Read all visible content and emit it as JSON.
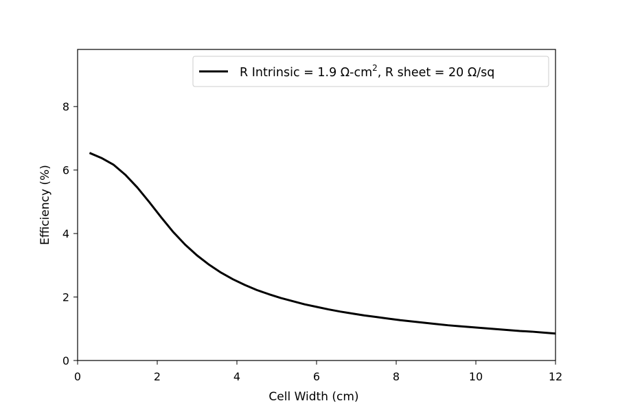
{
  "chart_data": {
    "type": "line",
    "xlabel": "Cell Width (cm)",
    "ylabel": "Efficiency (%)",
    "xlim": [
      0,
      12
    ],
    "ylim": [
      0,
      9.8
    ],
    "x_ticks": [
      "0",
      "2",
      "4",
      "6",
      "8",
      "10",
      "12"
    ],
    "y_ticks": [
      "0",
      "2",
      "4",
      "6",
      "8"
    ],
    "grid": false,
    "legend_position": "top-right",
    "series": [
      {
        "name": "R Intrinsic = 1.9 Ω-cm², R sheet = 20 Ω/sq",
        "color": "#000000",
        "x": [
          0.3,
          0.6,
          0.9,
          1.2,
          1.5,
          1.8,
          2.1,
          2.4,
          2.7,
          3.0,
          3.3,
          3.6,
          3.9,
          4.2,
          4.5,
          4.8,
          5.1,
          5.4,
          5.7,
          6.0,
          6.3,
          6.6,
          6.9,
          7.2,
          7.5,
          7.8,
          8.1,
          8.4,
          8.7,
          9.0,
          9.3,
          9.6,
          9.9,
          10.2,
          10.5,
          10.8,
          11.1,
          11.4,
          11.7,
          12.0
        ],
        "y": [
          6.54,
          6.38,
          6.17,
          5.85,
          5.45,
          4.99,
          4.51,
          4.05,
          3.65,
          3.31,
          3.02,
          2.77,
          2.56,
          2.38,
          2.22,
          2.09,
          1.97,
          1.87,
          1.77,
          1.69,
          1.61,
          1.54,
          1.48,
          1.42,
          1.37,
          1.32,
          1.27,
          1.23,
          1.19,
          1.15,
          1.11,
          1.08,
          1.05,
          1.02,
          0.99,
          0.96,
          0.93,
          0.91,
          0.88,
          0.85
        ]
      }
    ]
  },
  "legend": {
    "text_main": "R Intrinsic = 1.9 Ω-cm",
    "text_sup": "2",
    "text_tail": ", R sheet = 20 Ω/sq"
  }
}
